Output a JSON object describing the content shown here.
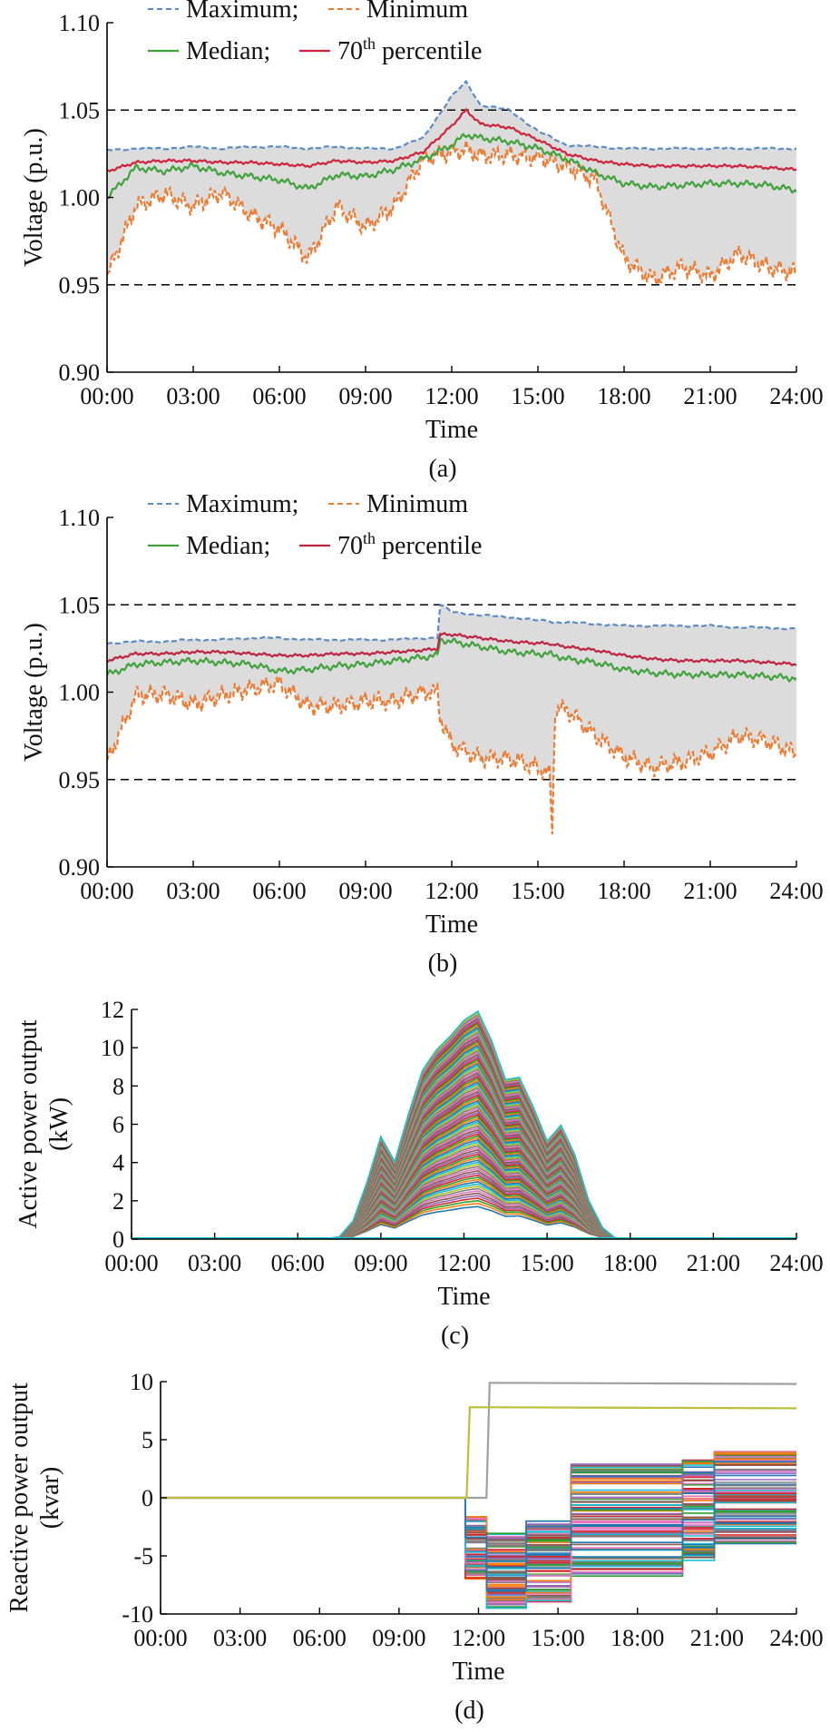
{
  "figure": {
    "panels": [
      {
        "id": "a",
        "caption": "(a)"
      },
      {
        "id": "b",
        "caption": "(b)"
      },
      {
        "id": "c",
        "caption": "(c)"
      },
      {
        "id": "d",
        "caption": "(d)"
      }
    ]
  },
  "chart_data": [
    {
      "panel": "(a)",
      "type": "line",
      "xlabel": "Time",
      "ylabel": "Voltage (p.u.)",
      "xticks": [
        "00:00",
        "03:00",
        "06:00",
        "09:00",
        "12:00",
        "15:00",
        "18:00",
        "21:00",
        "24:00"
      ],
      "yticks": [
        "0.90",
        "0.95",
        "1.00",
        "1.05",
        "1.10"
      ],
      "ylim": [
        0.9,
        1.1
      ],
      "xlim_hours": [
        0,
        24
      ],
      "legend": {
        "position": "top-left",
        "entries": [
          {
            "label": "Maximum;",
            "style": "dashed"
          },
          {
            "label": "Minimum",
            "style": "dashed"
          },
          {
            "label": "Median;",
            "style": "solid"
          },
          {
            "label": "70",
            "sup": "th",
            "suffix": " percentile",
            "style": "solid"
          }
        ]
      },
      "reference_lines": [
        0.95,
        1.05
      ],
      "band_fill": "min-to-max shaded gray",
      "colors": {
        "maximum": "#5b8bc4",
        "minimum": "#ec7c33",
        "median": "#3fa13a",
        "p70": "#d0223a",
        "band": "#dcdcdc"
      },
      "x_hours": [
        0,
        1,
        2,
        3,
        4,
        5,
        6,
        7,
        8,
        9,
        10,
        11,
        12,
        12.5,
        13,
        14,
        15,
        16,
        17,
        18,
        19,
        20,
        21,
        22,
        23,
        24
      ],
      "series": [
        {
          "name": "Maximum",
          "values": [
            1.027,
            1.028,
            1.028,
            1.029,
            1.028,
            1.029,
            1.029,
            1.028,
            1.029,
            1.028,
            1.028,
            1.034,
            1.058,
            1.066,
            1.053,
            1.05,
            1.038,
            1.03,
            1.029,
            1.028,
            1.028,
            1.028,
            1.028,
            1.028,
            1.028,
            1.028
          ]
        },
        {
          "name": "Minimum",
          "values": [
            0.955,
            0.995,
            1.002,
            0.995,
            1.003,
            0.99,
            0.982,
            0.965,
            0.995,
            0.983,
            0.995,
            1.022,
            1.026,
            1.027,
            1.024,
            1.024,
            1.023,
            1.018,
            1.01,
            0.965,
            0.953,
            0.96,
            0.955,
            0.968,
            0.96,
            0.957
          ]
        },
        {
          "name": "Median",
          "values": [
            1.0,
            1.017,
            1.015,
            1.018,
            1.014,
            1.012,
            1.01,
            1.005,
            1.013,
            1.012,
            1.016,
            1.022,
            1.03,
            1.036,
            1.034,
            1.032,
            1.028,
            1.022,
            1.014,
            1.008,
            1.006,
            1.007,
            1.008,
            1.008,
            1.007,
            1.004
          ]
        },
        {
          "name": "70th percentile",
          "values": [
            1.015,
            1.02,
            1.021,
            1.021,
            1.02,
            1.02,
            1.019,
            1.018,
            1.021,
            1.02,
            1.021,
            1.026,
            1.041,
            1.05,
            1.042,
            1.04,
            1.033,
            1.025,
            1.021,
            1.019,
            1.018,
            1.018,
            1.018,
            1.018,
            1.017,
            1.016
          ]
        }
      ]
    },
    {
      "panel": "(b)",
      "type": "line",
      "xlabel": "Time",
      "ylabel": "Voltage (p.u.)",
      "xticks": [
        "00:00",
        "03:00",
        "06:00",
        "09:00",
        "12:00",
        "15:00",
        "18:00",
        "21:00",
        "24:00"
      ],
      "yticks": [
        "0.90",
        "0.95",
        "1.00",
        "1.05",
        "1.10"
      ],
      "ylim": [
        0.9,
        1.1
      ],
      "xlim_hours": [
        0,
        24
      ],
      "legend": {
        "position": "top-left",
        "entries": [
          {
            "label": "Maximum;",
            "style": "dashed"
          },
          {
            "label": "Minimum",
            "style": "dashed"
          },
          {
            "label": "Median;",
            "style": "solid"
          },
          {
            "label": "70",
            "sup": "th",
            "suffix": " percentile",
            "style": "solid"
          }
        ]
      },
      "reference_lines": [
        0.95,
        1.05
      ],
      "band_fill": "min-to-max shaded gray",
      "colors": {
        "maximum": "#5b8bc4",
        "minimum": "#ec7c33",
        "median": "#3fa13a",
        "p70": "#c0213f",
        "band": "#dcdcdc"
      },
      "x_hours": [
        0,
        1,
        2,
        3,
        4,
        5,
        6,
        7,
        8,
        9,
        10,
        11,
        11.5,
        11.6,
        12,
        13,
        14,
        15,
        15.4,
        15.5,
        15.6,
        16,
        17,
        18,
        19,
        20,
        21,
        22,
        23,
        24
      ],
      "series": [
        {
          "name": "Maximum",
          "values": [
            1.028,
            1.029,
            1.029,
            1.03,
            1.03,
            1.031,
            1.031,
            1.03,
            1.03,
            1.03,
            1.03,
            1.031,
            1.031,
            1.05,
            1.046,
            1.044,
            1.043,
            1.041,
            1.041,
            1.04,
            1.04,
            1.04,
            1.039,
            1.038,
            1.038,
            1.038,
            1.038,
            1.037,
            1.037,
            1.036
          ]
        },
        {
          "name": "Minimum",
          "values": [
            0.96,
            0.998,
            0.999,
            0.993,
            0.998,
            1.002,
            1.005,
            0.992,
            0.992,
            0.995,
            0.995,
            1.0,
            1.0,
            0.985,
            0.97,
            0.962,
            0.962,
            0.957,
            0.953,
            0.92,
            0.99,
            0.99,
            0.975,
            0.963,
            0.957,
            0.96,
            0.965,
            0.975,
            0.972,
            0.965
          ]
        },
        {
          "name": "Median",
          "values": [
            1.01,
            1.016,
            1.017,
            1.018,
            1.017,
            1.016,
            1.012,
            1.013,
            1.015,
            1.016,
            1.018,
            1.02,
            1.021,
            1.03,
            1.029,
            1.026,
            1.023,
            1.022,
            1.022,
            1.021,
            1.021,
            1.019,
            1.017,
            1.013,
            1.011,
            1.01,
            1.01,
            1.01,
            1.009,
            1.008
          ]
        },
        {
          "name": "70th percentile",
          "values": [
            1.018,
            1.022,
            1.022,
            1.023,
            1.023,
            1.022,
            1.021,
            1.021,
            1.022,
            1.022,
            1.023,
            1.024,
            1.025,
            1.033,
            1.033,
            1.031,
            1.029,
            1.028,
            1.028,
            1.027,
            1.027,
            1.026,
            1.024,
            1.021,
            1.019,
            1.018,
            1.018,
            1.018,
            1.017,
            1.016
          ]
        }
      ]
    },
    {
      "panel": "(c)",
      "type": "line",
      "xlabel": "Time",
      "ylabel": "Active power output (kW)",
      "xticks": [
        "00:00",
        "03:00",
        "06:00",
        "09:00",
        "12:00",
        "15:00",
        "18:00",
        "21:00",
        "24:00"
      ],
      "yticks": [
        "0",
        "2",
        "4",
        "6",
        "8",
        "10",
        "12"
      ],
      "ylim": [
        0,
        12
      ],
      "xlim_hours": [
        0,
        24
      ],
      "num_series": 100,
      "profile_shape": {
        "x_hours": [
          0,
          7,
          7.5,
          8,
          8.5,
          9,
          9.5,
          10,
          10.5,
          11,
          11.5,
          12,
          12.5,
          13,
          13.5,
          14,
          14.5,
          15,
          15.5,
          16,
          16.5,
          17,
          17.5,
          18,
          24
        ],
        "normalized": [
          0,
          0,
          0.01,
          0.08,
          0.25,
          0.45,
          0.34,
          0.55,
          0.74,
          0.83,
          0.89,
          0.96,
          1.0,
          0.87,
          0.7,
          0.71,
          0.58,
          0.43,
          0.5,
          0.37,
          0.17,
          0.05,
          0.0,
          0,
          0
        ]
      },
      "peak_range_kw": [
        1.7,
        11.9
      ],
      "peak_time": "12:30"
    },
    {
      "panel": "(d)",
      "type": "line",
      "xlabel": "Time",
      "ylabel": "Reactive power output (kvar)",
      "xticks": [
        "00:00",
        "03:00",
        "06:00",
        "09:00",
        "12:00",
        "15:00",
        "18:00",
        "21:00",
        "24:00"
      ],
      "yticks": [
        "-10",
        "-5",
        "0",
        "5",
        "10"
      ],
      "ylim": [
        -10,
        10
      ],
      "xlim_hours": [
        0,
        24
      ],
      "num_series": 100,
      "step_times_hours": [
        11.5,
        12.3,
        13.8,
        15.5,
        19.7,
        20.9
      ],
      "highlighted_series": [
        {
          "color": "#a0a0a0",
          "step_time": "12:30",
          "value": 9.9
        },
        {
          "color": "#bdbf3a",
          "step_time": "11:30",
          "value": 7.8
        }
      ],
      "value_range_kvar": [
        -9.5,
        4.0
      ]
    }
  ]
}
